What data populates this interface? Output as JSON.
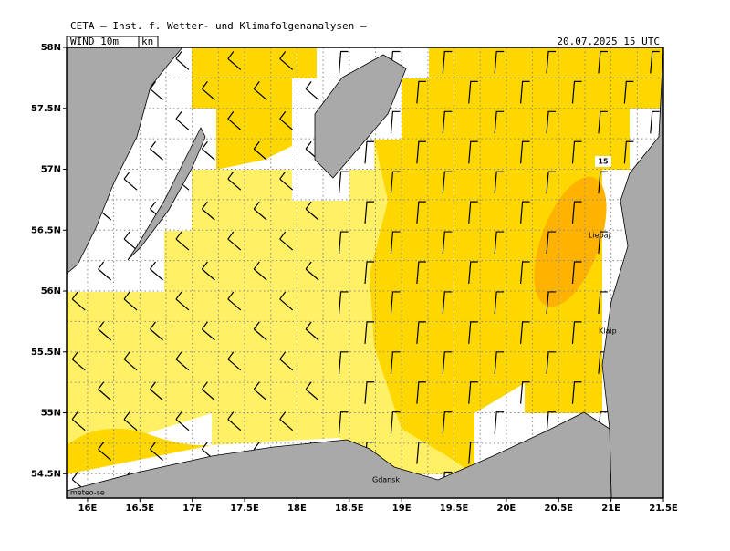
{
  "header": "CETA — Inst. f. Wetter- und Klimafolgenanalysen —",
  "field_label": "WIND_10m",
  "unit_label": "kn",
  "valid_time": "20.07.2025 15 UTC",
  "credit": "meteo-se",
  "contour_label": "15",
  "places": [
    "Liepaj",
    "Klaip",
    "Gdansk"
  ],
  "map": {
    "type": "map",
    "xlim": [
      15.8,
      21.5
    ],
    "ylim": [
      54.3,
      58
    ],
    "xticks": [
      {
        "value": 16,
        "label": "16E"
      },
      {
        "value": 16.5,
        "label": "16.5E"
      },
      {
        "value": 17,
        "label": "17E"
      },
      {
        "value": 17.5,
        "label": "17.5E"
      },
      {
        "value": 18,
        "label": "18E"
      },
      {
        "value": 18.5,
        "label": "18.5E"
      },
      {
        "value": 19,
        "label": "19E"
      },
      {
        "value": 19.5,
        "label": "19.5E"
      },
      {
        "value": 20,
        "label": "20E"
      },
      {
        "value": 20.5,
        "label": "20.5E"
      },
      {
        "value": 21,
        "label": "21E"
      },
      {
        "value": 21.5,
        "label": "21.5E"
      }
    ],
    "yticks": [
      {
        "value": 54.5,
        "label": "54.5N"
      },
      {
        "value": 55,
        "label": "55N"
      },
      {
        "value": 55.5,
        "label": "55.5N"
      },
      {
        "value": 56,
        "label": "56N"
      },
      {
        "value": 56.5,
        "label": "56.5N"
      },
      {
        "value": 57,
        "label": "57N"
      },
      {
        "value": 57.5,
        "label": "57.5N"
      },
      {
        "value": 58,
        "label": "58N"
      }
    ]
  }
}
